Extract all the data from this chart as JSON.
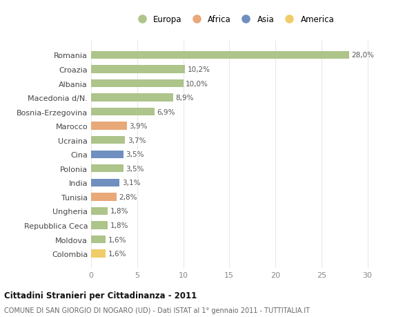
{
  "countries": [
    "Romania",
    "Croazia",
    "Albania",
    "Macedonia d/N.",
    "Bosnia-Erzegovina",
    "Marocco",
    "Ucraina",
    "Cina",
    "Polonia",
    "India",
    "Tunisia",
    "Ungheria",
    "Repubblica Ceca",
    "Moldova",
    "Colombia"
  ],
  "values": [
    28.0,
    10.2,
    10.0,
    8.9,
    6.9,
    3.9,
    3.7,
    3.5,
    3.5,
    3.1,
    2.8,
    1.8,
    1.8,
    1.6,
    1.6
  ],
  "continents": [
    "Europa",
    "Europa",
    "Europa",
    "Europa",
    "Europa",
    "Africa",
    "Europa",
    "Asia",
    "Europa",
    "Asia",
    "Africa",
    "Europa",
    "Europa",
    "Europa",
    "America"
  ],
  "colors": {
    "Europa": "#adc48a",
    "Africa": "#e8a878",
    "Asia": "#6e8fbf",
    "America": "#f0cc6a"
  },
  "legend_order": [
    "Europa",
    "Africa",
    "Asia",
    "America"
  ],
  "title": "Cittadini Stranieri per Cittadinanza - 2011",
  "subtitle": "COMUNE DI SAN GIORGIO DI NOGARO (UD) - Dati ISTAT al 1° gennaio 2011 - TUTTITALIA.IT",
  "xlim": [
    0,
    31
  ],
  "xticks": [
    0,
    5,
    10,
    15,
    20,
    25,
    30
  ],
  "bg_color": "#ffffff",
  "grid_color": "#e8e8e8",
  "bar_height": 0.55,
  "label_fontsize": 7.5,
  "ytick_fontsize": 8,
  "xtick_fontsize": 8
}
